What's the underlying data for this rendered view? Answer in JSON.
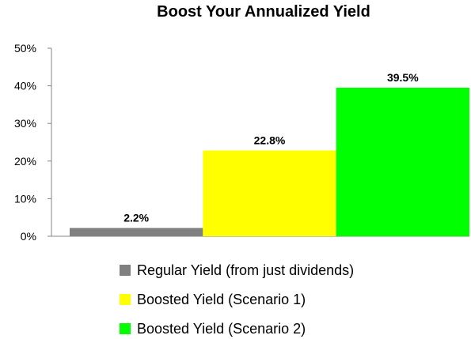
{
  "chart_data": {
    "type": "bar",
    "title": "Boost Your Annualized Yield",
    "xlabel": "",
    "ylabel": "",
    "ylim": [
      0,
      50
    ],
    "yticks": [
      "0%",
      "10%",
      "20%",
      "30%",
      "40%",
      "50%"
    ],
    "grid": false,
    "legend_position": "bottom",
    "series": [
      {
        "name": "Regular Yield (from just dividends)",
        "value": 2.2,
        "label": "2.2%",
        "color": "#808080"
      },
      {
        "name": "Boosted Yield (Scenario 1)",
        "value": 22.8,
        "label": "22.8%",
        "color": "#ffff00"
      },
      {
        "name": "Boosted Yield (Scenario 2)",
        "value": 39.5,
        "label": "39.5%",
        "color": "#00ff00"
      }
    ]
  }
}
